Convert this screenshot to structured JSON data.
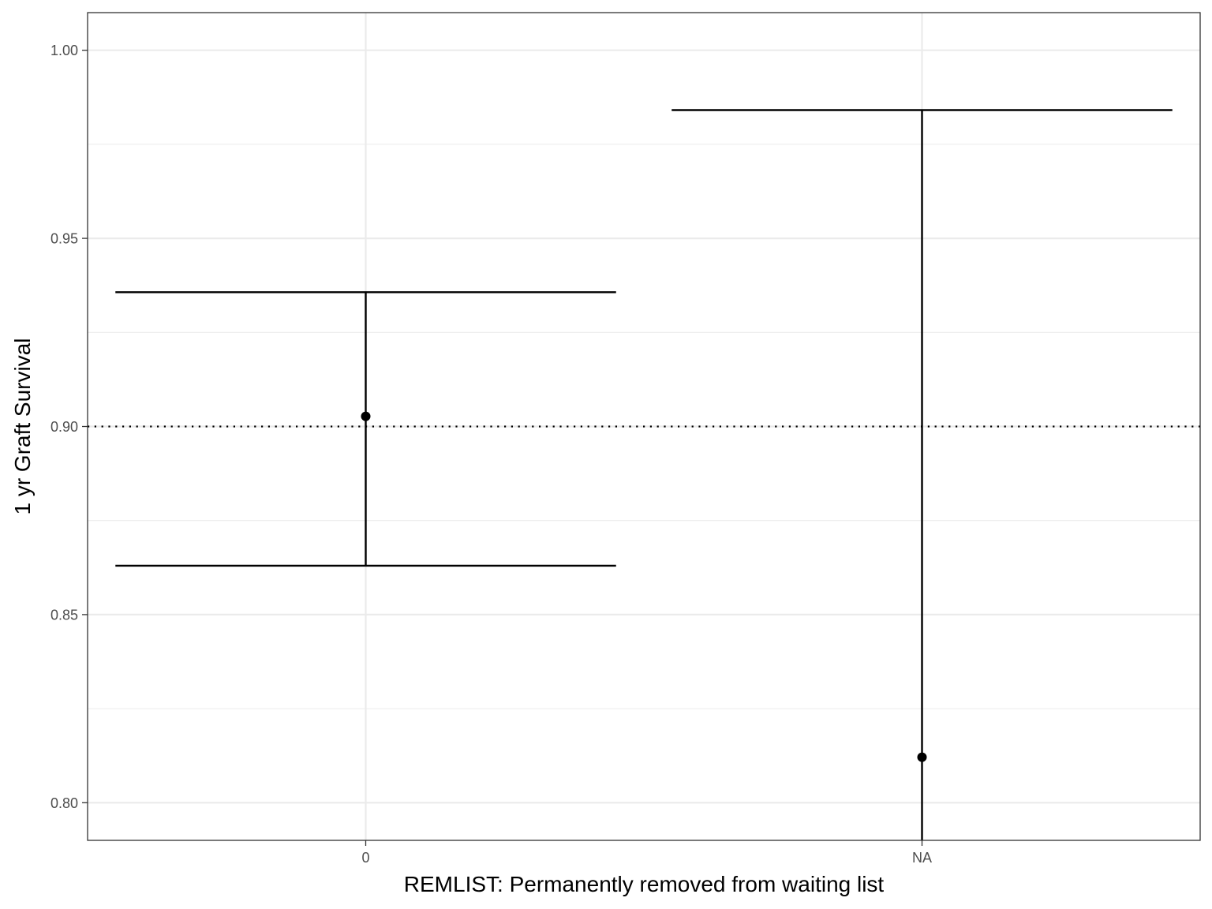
{
  "chart_data": {
    "type": "scatter",
    "xlabel": "REMLIST: Permanently removed from waiting list",
    "ylabel": "1 yr Graft Survival",
    "categories": [
      "0",
      "NA"
    ],
    "points": [
      {
        "category": "0",
        "estimate": 0.9027,
        "lower": 0.863,
        "upper": 0.9357
      },
      {
        "category": "NA",
        "estimate": 0.8121,
        "lower": 0.79,
        "upper": 0.9841
      }
    ],
    "reference_line": {
      "y": 0.9,
      "style": "dotted"
    },
    "ylim": [
      0.79,
      1.01
    ],
    "yticks": [
      0.8,
      0.85,
      0.9,
      0.95,
      1.0
    ],
    "ytick_labels": [
      "0.80",
      "0.85",
      "0.90",
      "0.95",
      "1.00"
    ],
    "grid": true,
    "colors": {
      "marks": "#000000",
      "grid": "#ebebeb",
      "panel_border": "#333333",
      "tick_text": "#4d4d4d"
    }
  }
}
